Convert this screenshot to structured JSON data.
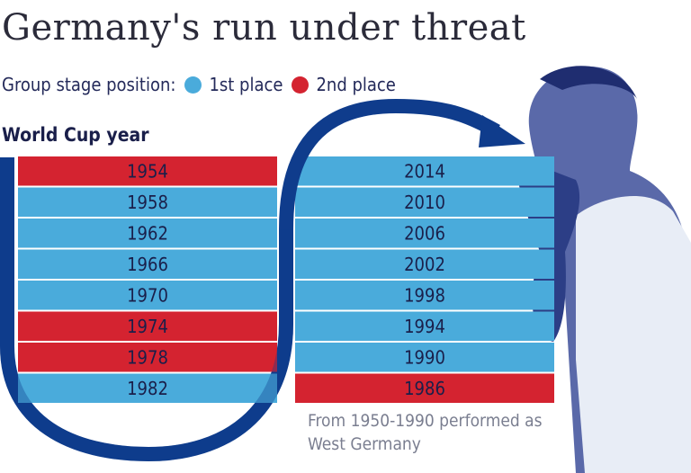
{
  "title": "Germany's run under threat",
  "legend": {
    "label": "Group stage position:",
    "items": [
      {
        "label": "1st place",
        "color": "#4aabdb"
      },
      {
        "label": "2nd place",
        "color": "#d42330"
      }
    ]
  },
  "axis_title": "World Cup year",
  "note": "From 1950-1990 performed as West Germany",
  "colors": {
    "first": "#4aabdb",
    "second": "#d42330",
    "arrow": "#0f3c8c"
  },
  "chart_data": {
    "type": "table",
    "categories": [
      "1st place",
      "2nd place"
    ],
    "columns": [
      [
        {
          "year": "1954",
          "position": 2
        },
        {
          "year": "1958",
          "position": 1
        },
        {
          "year": "1962",
          "position": 1
        },
        {
          "year": "1966",
          "position": 1
        },
        {
          "year": "1970",
          "position": 1
        },
        {
          "year": "1974",
          "position": 2
        },
        {
          "year": "1978",
          "position": 2
        },
        {
          "year": "1982",
          "position": 1
        }
      ],
      [
        {
          "year": "2014",
          "position": 1
        },
        {
          "year": "2010",
          "position": 1
        },
        {
          "year": "2006",
          "position": 1
        },
        {
          "year": "2002",
          "position": 1
        },
        {
          "year": "1998",
          "position": 1
        },
        {
          "year": "1994",
          "position": 1
        },
        {
          "year": "1990",
          "position": 1
        },
        {
          "year": "1986",
          "position": 2
        }
      ]
    ]
  }
}
